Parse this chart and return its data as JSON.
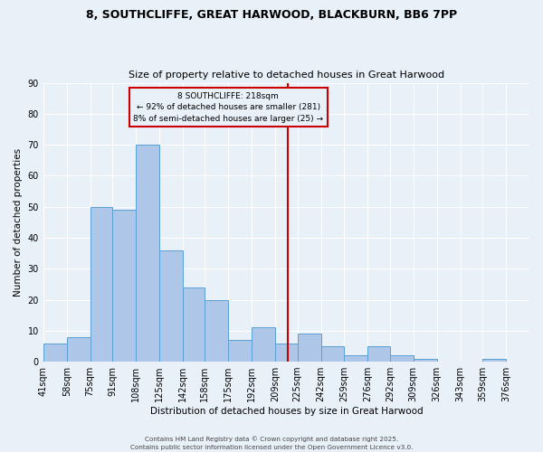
{
  "title1": "8, SOUTHCLIFFE, GREAT HARWOOD, BLACKBURN, BB6 7PP",
  "title2": "Size of property relative to detached houses in Great Harwood",
  "xlabel": "Distribution of detached houses by size in Great Harwood",
  "ylabel": "Number of detached properties",
  "bin_labels": [
    "41sqm",
    "58sqm",
    "75sqm",
    "91sqm",
    "108sqm",
    "125sqm",
    "142sqm",
    "158sqm",
    "175sqm",
    "192sqm",
    "209sqm",
    "225sqm",
    "242sqm",
    "259sqm",
    "276sqm",
    "292sqm",
    "309sqm",
    "326sqm",
    "343sqm",
    "359sqm",
    "376sqm"
  ],
  "bar_heights": [
    6,
    8,
    50,
    49,
    70,
    36,
    24,
    20,
    7,
    11,
    6,
    9,
    5,
    2,
    5,
    2,
    1,
    0,
    0,
    1,
    0
  ],
  "bin_edges": [
    41,
    58,
    75,
    91,
    108,
    125,
    142,
    158,
    175,
    192,
    209,
    225,
    242,
    259,
    276,
    292,
    309,
    326,
    343,
    359,
    376,
    393
  ],
  "bar_color": "#aec6e8",
  "bar_edge_color": "#5a9fd4",
  "vline_x": 218,
  "vline_color": "#cc0000",
  "annotation_title": "8 SOUTHCLIFFE: 218sqm",
  "annotation_line1": "← 92% of detached houses are smaller (281)",
  "annotation_line2": "8% of semi-detached houses are larger (25) →",
  "annotation_box_edge": "#cc0000",
  "background_color": "#e8f0f8",
  "grid_color": "#ffffff",
  "ylim": [
    0,
    90
  ],
  "yticks": [
    0,
    10,
    20,
    30,
    40,
    50,
    60,
    70,
    80,
    90
  ],
  "footer1": "Contains HM Land Registry data © Crown copyright and database right 2025.",
  "footer2": "Contains public sector information licensed under the Open Government Licence v3.0."
}
